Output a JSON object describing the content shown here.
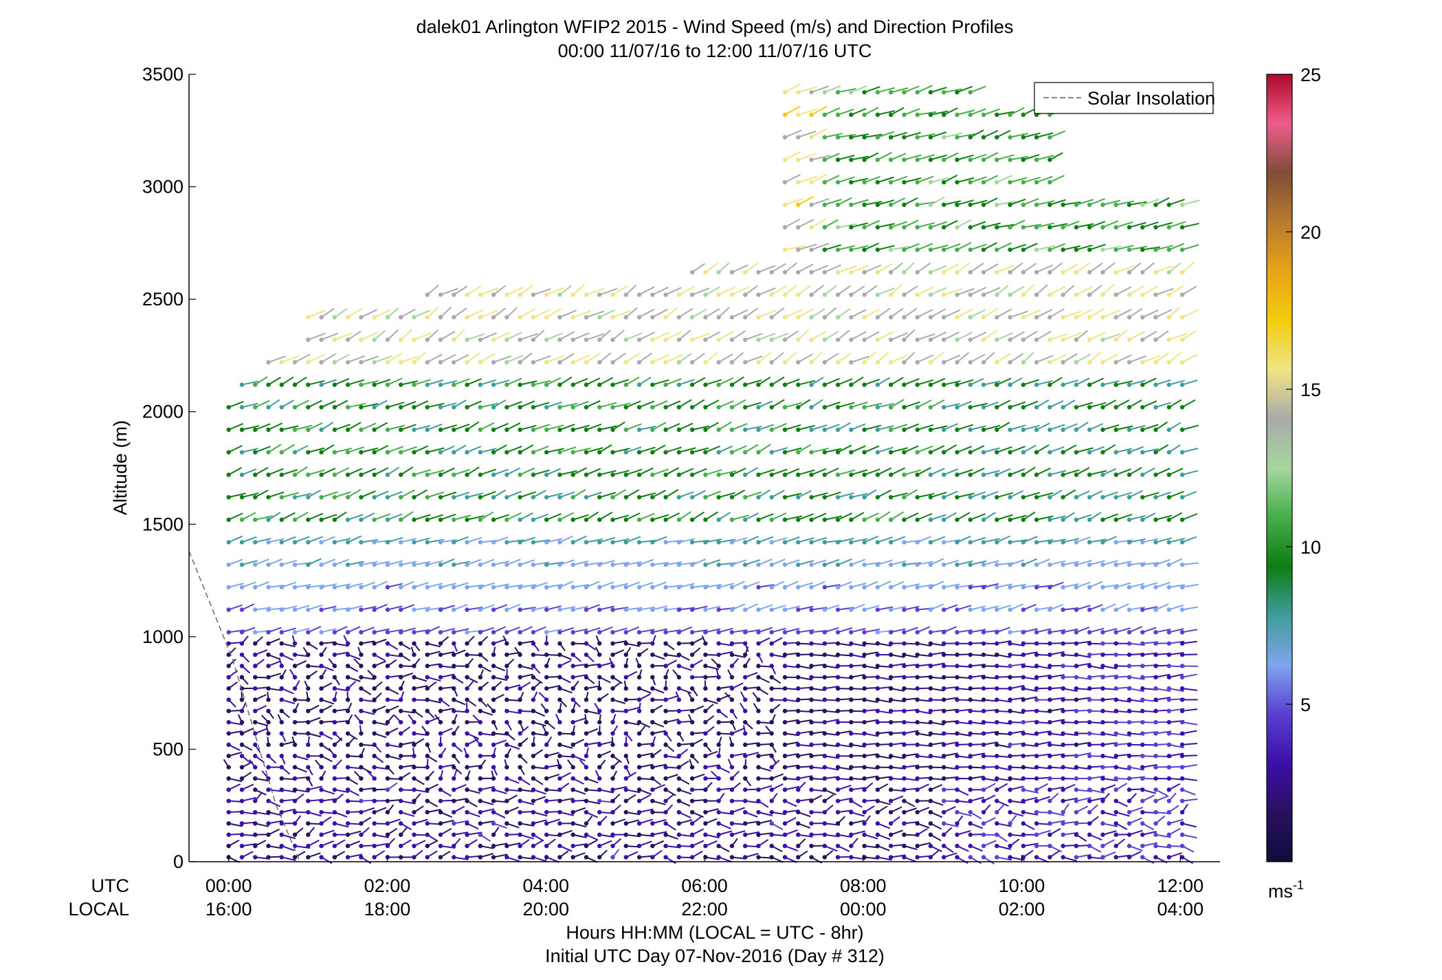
{
  "chart_data": {
    "type": "wind-barb-profile",
    "title": "dalek01 Arlington WFIP2 2015 - Wind Speed (m/s) and Direction Profiles",
    "subtitle": "00:00 11/07/16 to 12:00 11/07/16  UTC",
    "ylabel": "Altitude (m)",
    "ylim": [
      0,
      3500
    ],
    "yticks": [
      "0",
      "500",
      "1000",
      "1500",
      "2000",
      "2500",
      "3000",
      "3500"
    ],
    "xlim_hours": [
      -0.5,
      12.5
    ],
    "xticks_utc": [
      "00:00",
      "02:00",
      "04:00",
      "06:00",
      "08:00",
      "10:00",
      "12:00"
    ],
    "xticks_local": [
      "16:00",
      "18:00",
      "20:00",
      "22:00",
      "00:00",
      "02:00",
      "04:00"
    ],
    "x_row_labels": [
      "UTC",
      "LOCAL"
    ],
    "xlabel": "Hours HH:MM  (LOCAL = UTC - 8hr)",
    "xlabel2": "Initial UTC Day 07-Nov-2016 (Day # 312)",
    "legend": {
      "entries": [
        "Solar Insolation"
      ],
      "position": "top-right"
    },
    "colorbar": {
      "range": [
        0,
        25
      ],
      "ticks": [
        "5",
        "10",
        "15",
        "20",
        "25"
      ],
      "unit_base": "ms",
      "unit_exp": "-1",
      "colors": [
        "#0d0d3a",
        "#2a1060",
        "#3c0fa8",
        "#5a3fd0",
        "#7fa5ee",
        "#3f9c9c",
        "#0e7e12",
        "#46ad4a",
        "#a6d6a0",
        "#aaaaaa",
        "#f0e484",
        "#f2cd0e",
        "#e9a316",
        "#b87a30",
        "#7e4e36",
        "#ee5c8c",
        "#ad0a28"
      ]
    },
    "series_summary": [
      {
        "altitude_range_m": [
          0,
          400
        ],
        "speed_ms": "1-4",
        "direction": "variable"
      },
      {
        "altitude_range_m": [
          400,
          1000
        ],
        "speed_ms": "1-5",
        "direction": "variable"
      },
      {
        "altitude_range_m": [
          1000,
          1500
        ],
        "speed_ms": "4-9",
        "direction": "SW"
      },
      {
        "altitude_range_m": [
          1500,
          2200
        ],
        "speed_ms": "8-12",
        "direction": "SW"
      },
      {
        "altitude_range_m": [
          2200,
          2600
        ],
        "speed_ms": "13-17",
        "direction": "SW"
      },
      {
        "altitude_range_m": [
          2600,
          3500
        ],
        "speed_ms": "9-17",
        "direction": "SW"
      }
    ],
    "solar_insolation_line": [
      [
        -0.5,
        1380
      ],
      [
        0.05,
        900
      ],
      [
        0.6,
        250
      ],
      [
        0.9,
        0
      ]
    ]
  }
}
